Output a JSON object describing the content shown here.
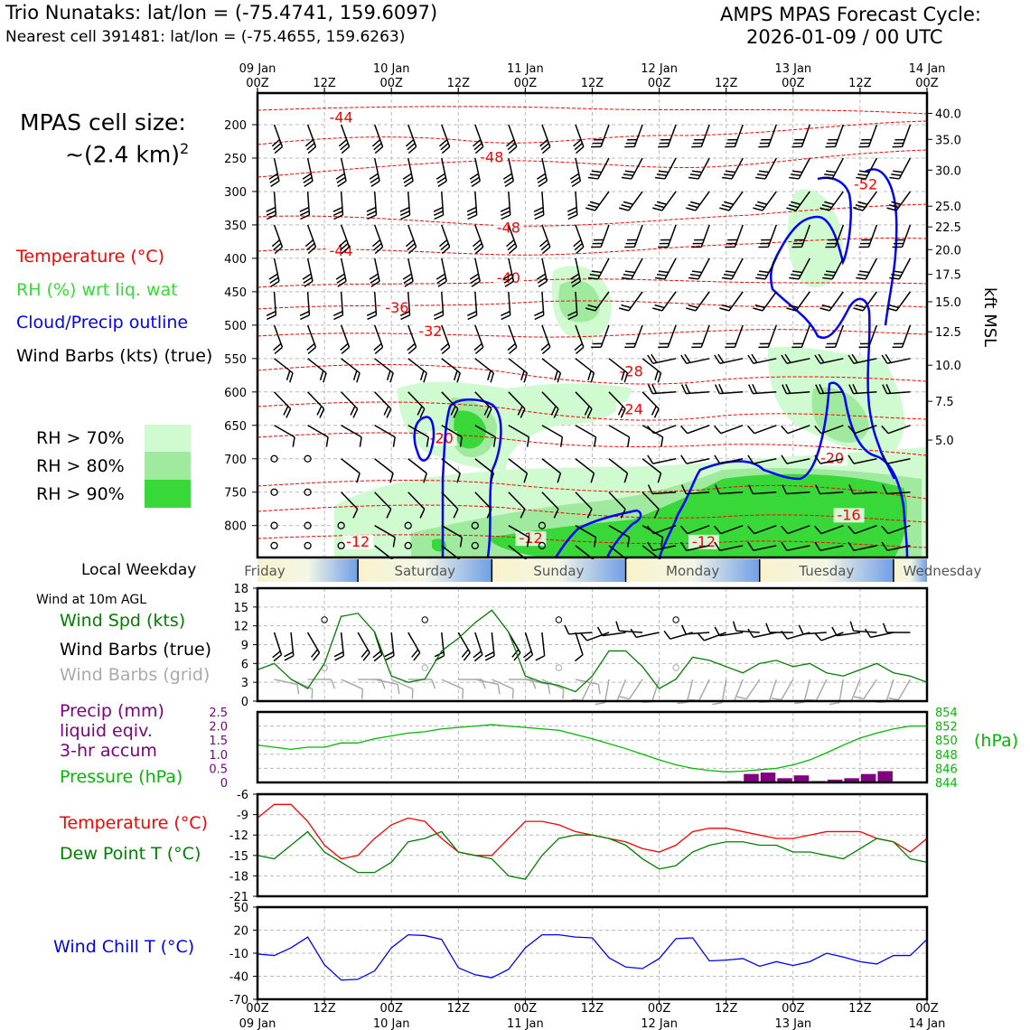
{
  "header": {
    "station": "Trio Nunataks: lat/lon = (-75.4741, 159.6097)",
    "nearest": "Nearest cell 391481: lat/lon = (-75.4655, 159.6263)",
    "cycle_line1": "AMPS MPAS Forecast Cycle:",
    "cycle_line2": "2026-01-09 / 00 UTC"
  },
  "legend": {
    "cell_size_line1": "MPAS cell size:",
    "cell_size_line2_base": "~(2.4 km)",
    "cell_size_line2_sup": "2",
    "temperature": "Temperature (°C)",
    "rh": "RH (%) wrt liq. wat",
    "cloud": "Cloud/Precip outline",
    "barbs": "Wind Barbs (kts) (true)",
    "rh70": "RH > 70%",
    "rh80": "RH > 80%",
    "rh90": "RH > 90%",
    "local_weekday": "Local Weekday",
    "wind10m": "Wind at 10m AGL",
    "wind_spd": "Wind Spd (kts)",
    "wind_true": "Wind Barbs (true)",
    "wind_grid": "Wind Barbs (grid)",
    "precip1": "Precip (mm)",
    "precip2": "liquid eqiv.",
    "precip3": "3-hr accum",
    "pressure": "Pressure (hPa)",
    "hpa_unit": "(hPa)",
    "temp2": "Temperature (°C)",
    "dewpoint": "Dew Point T (°C)",
    "windchill": "Wind Chill T (°C)",
    "kft": "kft MSL"
  },
  "colors": {
    "temp": "#ff0000",
    "rh_text": "#33dd33",
    "cloud": "#0000ff",
    "spd": "#008000",
    "grid_barb": "#aaaaaa",
    "precip": "#800080",
    "pres": "#00bb00",
    "windchill": "#0000ff",
    "rh70": "#d0fad0",
    "rh80": "#a0eaa0",
    "rh90": "#38d838"
  },
  "chart_data": [
    {
      "type": "heatmap",
      "panel": "pressure-time cross section",
      "x_ticks_top": [
        {
          "hour": 0,
          "label": "09 Jan\n00Z"
        },
        {
          "hour": 12,
          "label": "12Z"
        },
        {
          "hour": 24,
          "label": "10 Jan\n00Z"
        },
        {
          "hour": 36,
          "label": "12Z"
        },
        {
          "hour": 48,
          "label": "11 Jan\n00Z"
        },
        {
          "hour": 60,
          "label": "12Z"
        },
        {
          "hour": 72,
          "label": "12 Jan\n00Z"
        },
        {
          "hour": 84,
          "label": "12Z"
        },
        {
          "hour": 96,
          "label": "13 Jan\n00Z"
        },
        {
          "hour": 108,
          "label": "12Z"
        },
        {
          "hour": 120,
          "label": "14 Jan\n00Z"
        }
      ],
      "y_left_ticks_hpa": [
        200,
        250,
        300,
        350,
        400,
        450,
        500,
        550,
        600,
        650,
        700,
        750,
        800
      ],
      "y_right_ticks_kft": [
        {
          "kft": "40.0",
          "hpa": 183
        },
        {
          "kft": "35.0",
          "hpa": 222
        },
        {
          "kft": "30.0",
          "hpa": 268
        },
        {
          "kft": "25.0",
          "hpa": 322
        },
        {
          "kft": "22.5",
          "hpa": 353
        },
        {
          "kft": "20.0",
          "hpa": 387
        },
        {
          "kft": "17.5",
          "hpa": 424
        },
        {
          "kft": "15.0",
          "hpa": 465
        },
        {
          "kft": "12.5",
          "hpa": 510
        },
        {
          "kft": "10.0",
          "hpa": 560
        },
        {
          "kft": "7.5",
          "hpa": 614
        },
        {
          "kft": "5.0",
          "hpa": 672
        }
      ],
      "temperature_labels": [
        {
          "text": "-44",
          "hour": 15,
          "hpa": 195
        },
        {
          "text": "-48",
          "hour": 42,
          "hpa": 255
        },
        {
          "text": "-52",
          "hour": 109,
          "hpa": 295
        },
        {
          "text": "-48",
          "hour": 45,
          "hpa": 360
        },
        {
          "text": "-44",
          "hour": 15,
          "hpa": 395
        },
        {
          "text": "-40",
          "hour": 45,
          "hpa": 435
        },
        {
          "text": "-36",
          "hour": 25,
          "hpa": 480
        },
        {
          "text": "-32",
          "hour": 31,
          "hpa": 515
        },
        {
          "text": "-28",
          "hour": 67,
          "hpa": 575
        },
        {
          "text": "-24",
          "hour": 67,
          "hpa": 632
        },
        {
          "text": "-20",
          "hour": 33,
          "hpa": 675
        },
        {
          "text": "-20",
          "hour": 103,
          "hpa": 705
        },
        {
          "text": "-16",
          "hour": 106,
          "hpa": 790
        },
        {
          "text": "-12",
          "hour": 18,
          "hpa": 830
        },
        {
          "text": "-12",
          "hour": 49,
          "hpa": 825
        },
        {
          "text": "-12",
          "hour": 80,
          "hpa": 830
        }
      ],
      "weekdays": [
        "Friday",
        "Saturday",
        "Sunday",
        "Monday",
        "Tuesday",
        "Wednesday"
      ]
    },
    {
      "type": "line",
      "panel": "10m wind speed",
      "ylim": [
        0,
        18
      ],
      "yticks": [
        0,
        3,
        6,
        9,
        12,
        15,
        18
      ],
      "x_hours": [
        0,
        3,
        6,
        9,
        12,
        15,
        18,
        21,
        24,
        27,
        30,
        33,
        36,
        39,
        42,
        45,
        48,
        51,
        54,
        57,
        60,
        63,
        66,
        69,
        72,
        75,
        78,
        81,
        84,
        87,
        90,
        93,
        96,
        99,
        102,
        105,
        108,
        111,
        114,
        117,
        120
      ],
      "series": [
        {
          "key": "wind_speed",
          "values": [
            5.0,
            6.0,
            3.5,
            2.0,
            6.0,
            13.5,
            14.0,
            11.0,
            4.0,
            3.0,
            3.5,
            8.0,
            10.0,
            12.5,
            14.5,
            11.0,
            4.0,
            3.0,
            2.5,
            1.5,
            4.0,
            8.0,
            8.0,
            5.5,
            2.0,
            3.5,
            7.0,
            6.5,
            5.5,
            4.5,
            6.0,
            6.5,
            5.5,
            6.0,
            4.5,
            4.0,
            5.0,
            6.0,
            4.5,
            4.0,
            3.0
          ]
        }
      ]
    },
    {
      "type": "bar",
      "panel": "precip and pressure",
      "precip_ylim": [
        0,
        2.5
      ],
      "precip_yticks": [
        "0",
        "0.5",
        "1.0",
        "1.5",
        "2.0",
        "2.5"
      ],
      "pressure_ylim": [
        844,
        854
      ],
      "pressure_yticks": [
        844,
        846,
        848,
        850,
        852,
        854
      ],
      "precip_hours": [
        84,
        87,
        90,
        93,
        96,
        99,
        102,
        105,
        108,
        111
      ],
      "precip_values": [
        0.05,
        0.3,
        0.35,
        0.15,
        0.25,
        0.05,
        0.1,
        0.15,
        0.3,
        0.4
      ],
      "pressure_hours": [
        0,
        3,
        6,
        9,
        12,
        15,
        18,
        21,
        24,
        27,
        30,
        33,
        36,
        39,
        42,
        45,
        48,
        51,
        54,
        57,
        60,
        63,
        66,
        69,
        72,
        75,
        78,
        81,
        84,
        87,
        90,
        93,
        96,
        99,
        102,
        105,
        108,
        111,
        114,
        117,
        120
      ],
      "pressure_values": [
        849.3,
        849.0,
        848.7,
        849.0,
        849.0,
        849.6,
        849.6,
        850.2,
        850.6,
        851.0,
        851.2,
        851.6,
        851.8,
        852.0,
        852.2,
        852.0,
        851.8,
        851.6,
        851.4,
        850.8,
        850.2,
        849.5,
        848.8,
        848.0,
        847.2,
        846.5,
        846.0,
        845.7,
        845.5,
        845.6,
        845.8,
        846.0,
        846.5,
        847.2,
        848.2,
        849.3,
        850.3,
        851.0,
        851.6,
        852.0,
        852.0
      ]
    },
    {
      "type": "line",
      "panel": "temperature and dew point",
      "ylim": [
        -21,
        -6
      ],
      "yticks": [
        -21,
        -18,
        -15,
        -12,
        -9,
        -6
      ],
      "x_hours": [
        0,
        3,
        6,
        9,
        12,
        15,
        18,
        21,
        24,
        27,
        30,
        33,
        36,
        39,
        42,
        45,
        48,
        51,
        54,
        57,
        60,
        63,
        66,
        69,
        72,
        75,
        78,
        81,
        84,
        87,
        90,
        93,
        96,
        99,
        102,
        105,
        108,
        111,
        114,
        117,
        120
      ],
      "series": [
        {
          "key": "temperature",
          "values": [
            -9.5,
            -7.5,
            -7.5,
            -10,
            -13.5,
            -15.5,
            -15,
            -12.5,
            -10.5,
            -9.5,
            -10,
            -12.5,
            -14.5,
            -15,
            -15,
            -12.5,
            -10,
            -10,
            -10.5,
            -11.5,
            -12,
            -12.5,
            -13,
            -14,
            -14.5,
            -13.5,
            -11.5,
            -11,
            -11,
            -11.5,
            -12,
            -12.5,
            -12.5,
            -12,
            -11.5,
            -11.5,
            -11.5,
            -12.5,
            -13,
            -14.5,
            -12.5
          ]
        },
        {
          "key": "dewpoint",
          "values": [
            -15,
            -15.5,
            -13.5,
            -11.5,
            -14.5,
            -16,
            -17.5,
            -17.5,
            -16,
            -13,
            -12.5,
            -11.5,
            -14.5,
            -15,
            -15.5,
            -18,
            -18.5,
            -15,
            -12.5,
            -12,
            -12,
            -12.5,
            -13.5,
            -15.5,
            -17,
            -16.5,
            -14.5,
            -13.5,
            -13,
            -13,
            -13.5,
            -13.5,
            -14.5,
            -14.5,
            -15,
            -15.5,
            -14,
            -12.5,
            -13,
            -15.5,
            -16
          ]
        }
      ]
    },
    {
      "type": "line",
      "panel": "wind chill",
      "ylim": [
        -70,
        50
      ],
      "yticks": [
        -70,
        -40,
        -10,
        20,
        50
      ],
      "x_hours": [
        0,
        3,
        6,
        9,
        12,
        15,
        18,
        21,
        24,
        27,
        30,
        33,
        36,
        39,
        42,
        45,
        48,
        51,
        54,
        57,
        60,
        63,
        66,
        69,
        72,
        75,
        78,
        81,
        84,
        87,
        90,
        93,
        96,
        99,
        102,
        105,
        108,
        111,
        114,
        117,
        120
      ],
      "series": [
        {
          "key": "wind_chill",
          "values": [
            -11,
            -13,
            -3,
            11,
            -25,
            -45,
            -44,
            -33,
            -3,
            14,
            13,
            8,
            -29,
            -38,
            -42,
            -31,
            -3,
            14,
            14,
            11,
            10,
            -16,
            -28,
            -30,
            -17,
            9,
            10,
            -20,
            -19,
            -17,
            -27,
            -21,
            -26,
            -21,
            -10,
            -15,
            -21,
            -24,
            -13,
            -13,
            8
          ]
        }
      ]
    }
  ]
}
